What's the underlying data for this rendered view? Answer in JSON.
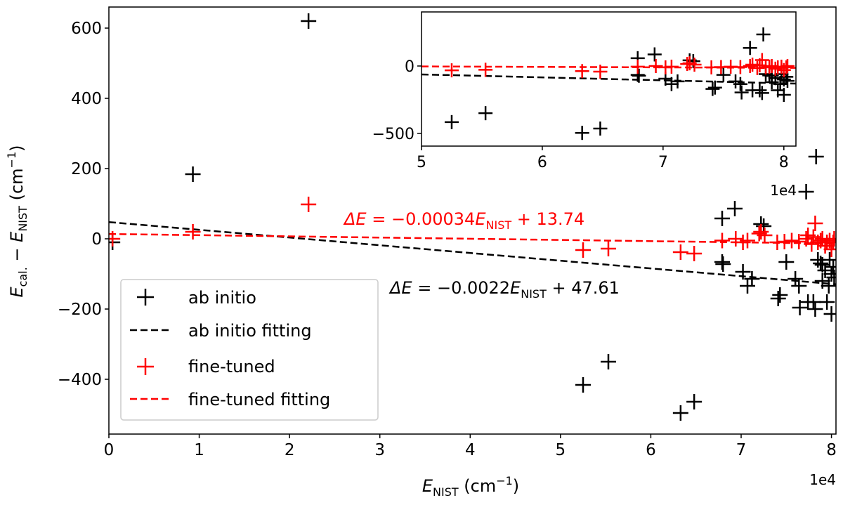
{
  "chart_data": [
    {
      "type": "scatter",
      "xlabel": {
        "main": "E",
        "sub": "NIST",
        "unit": " (cm",
        "sup": "−1",
        "close": ")"
      },
      "ylabel": {
        "e1": "E",
        "sub1": "cal.",
        "minus": " − ",
        "e2": "E",
        "sub2": "NIST",
        "unit": " (cm",
        "sup": "−1",
        "close": ")"
      },
      "x_offset_label": "1e4",
      "xlim": [
        0,
        8.05
      ],
      "ylim": [
        -556,
        660
      ],
      "xticks": [
        "0",
        "1",
        "2",
        "3",
        "4",
        "5",
        "6",
        "7",
        "8"
      ],
      "yticks": [
        "−400",
        "−200",
        "0",
        "200",
        "400",
        "600"
      ],
      "grid": false,
      "legend_position": "lower-left",
      "legend": [
        "ab initio",
        "ab initio fitting",
        "fine-tuned",
        "fine-tuned fitting"
      ],
      "colors": {
        "ab_initio": "#000000",
        "fine_tuned": "#ff0000"
      },
      "series": [
        {
          "name": "ab initio",
          "marker": "plus",
          "color": "#000000",
          "points": [
            [
              0.04,
              -10
            ],
            [
              0.93,
              184
            ],
            [
              2.21,
              620
            ],
            [
              5.25,
              -416
            ],
            [
              5.53,
              -350
            ],
            [
              6.33,
              -496
            ],
            [
              6.48,
              -464
            ],
            [
              6.79,
              58
            ],
            [
              6.79,
              -66
            ],
            [
              6.8,
              -72
            ],
            [
              6.93,
              86
            ],
            [
              7.02,
              -94
            ],
            [
              7.07,
              -134
            ],
            [
              7.12,
              -114
            ],
            [
              7.22,
              42
            ],
            [
              7.25,
              36
            ],
            [
              7.41,
              -170
            ],
            [
              7.43,
              -160
            ],
            [
              7.5,
              -66
            ],
            [
              7.6,
              -114
            ],
            [
              7.64,
              -134
            ],
            [
              7.65,
              -196
            ],
            [
              7.72,
              134
            ],
            [
              7.74,
              -180
            ],
            [
              7.8,
              -180
            ],
            [
              7.82,
              -200
            ],
            [
              7.83,
              234
            ],
            [
              7.85,
              -60
            ],
            [
              7.88,
              -70
            ],
            [
              7.9,
              -74
            ],
            [
              7.9,
              -120
            ],
            [
              7.93,
              -90
            ],
            [
              7.95,
              -180
            ],
            [
              7.97,
              -134
            ],
            [
              7.98,
              -60
            ],
            [
              8.0,
              -100
            ],
            [
              8.0,
              -214
            ],
            [
              8.02,
              -80
            ],
            [
              8.03,
              -110
            ]
          ]
        },
        {
          "name": "fine-tuned",
          "marker": "plus",
          "color": "#ff0000",
          "points": [
            [
              0.04,
              0
            ],
            [
              0.93,
              20
            ],
            [
              2.21,
              98
            ],
            [
              5.25,
              -32
            ],
            [
              5.53,
              -28
            ],
            [
              6.33,
              -38
            ],
            [
              6.48,
              -42
            ],
            [
              6.79,
              -5
            ],
            [
              6.94,
              0
            ],
            [
              7.02,
              -10
            ],
            [
              7.07,
              -5
            ],
            [
              7.2,
              15
            ],
            [
              7.22,
              20
            ],
            [
              7.26,
              10
            ],
            [
              7.4,
              -10
            ],
            [
              7.48,
              -8
            ],
            [
              7.56,
              -5
            ],
            [
              7.64,
              -8
            ],
            [
              7.72,
              0
            ],
            [
              7.74,
              10
            ],
            [
              7.78,
              -15
            ],
            [
              7.8,
              5
            ],
            [
              7.82,
              44
            ],
            [
              7.85,
              -10
            ],
            [
              7.88,
              -5
            ],
            [
              7.9,
              0
            ],
            [
              7.93,
              -20
            ],
            [
              7.95,
              -10
            ],
            [
              7.98,
              -5
            ],
            [
              8.0,
              -30
            ],
            [
              8.02,
              -10
            ],
            [
              8.03,
              0
            ]
          ]
        }
      ],
      "fits": [
        {
          "name": "ab initio fitting",
          "color": "#000000",
          "style": "dashed",
          "slope": -0.0022,
          "intercept": 47.61,
          "annotation": {
            "prefix": "ΔE",
            "eq": " = −0.0022",
            "e": "E",
            "sub": "NIST",
            "rest": " + 47.61"
          }
        },
        {
          "name": "fine-tuned fitting",
          "color": "#ff0000",
          "style": "dashed",
          "slope": -0.00034,
          "intercept": 13.74,
          "annotation": {
            "prefix": "ΔE",
            "eq": " = −0.00034",
            "e": "E",
            "sub": "NIST",
            "rest": " + 13.74"
          }
        }
      ]
    },
    {
      "type": "scatter",
      "role": "inset",
      "xlim": [
        5,
        8.1
      ],
      "ylim": [
        -594,
        401
      ],
      "xticks": [
        "5",
        "6",
        "7",
        "8"
      ],
      "yticks": [
        "−500",
        "0"
      ],
      "x_offset_label": "1e4",
      "note": "same series and fits as main chart, zoomed"
    }
  ]
}
